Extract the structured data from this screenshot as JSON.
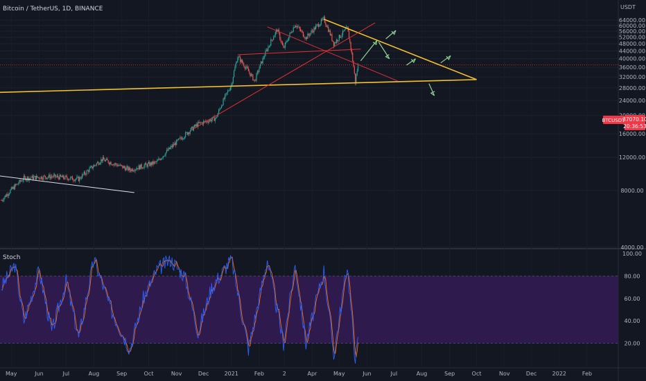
{
  "header": {
    "title": "Bitcoin / TetherUS, 1D, BINANCE"
  },
  "price_axis": {
    "currency": "USDT",
    "ticks": [
      "64000.00",
      "60000.00",
      "56000.00",
      "52000.00",
      "48000.00",
      "44000.00",
      "40000.00",
      "36000.00",
      "32000.00",
      "28000.00",
      "24000.00",
      "20000.00",
      "16000.00",
      "12000.00",
      "8000.00",
      "4000.00"
    ]
  },
  "price_badge": {
    "symbol": "BTCUSDT",
    "price": "37070.10",
    "countdown": "20:36:53",
    "color": "#f23645"
  },
  "stoch": {
    "label": "Stoch",
    "ticks": [
      "100.00",
      "80.00",
      "60.00",
      "40.00",
      "20.00"
    ],
    "band_color": "#2e1a4d",
    "k_color": "#2962ff",
    "d_color": "#ff6d00"
  },
  "time_axis": {
    "labels": [
      "May",
      "Jun",
      "Jul",
      "Aug",
      "Sep",
      "Oct",
      "Nov",
      "Dec",
      "2021",
      "Feb",
      "2",
      "Apr",
      "May",
      "Jun",
      "Jul",
      "Aug",
      "Sep",
      "Oct",
      "Nov",
      "Dec",
      "2022",
      "Feb"
    ]
  },
  "chart_data": {
    "type": "candlestick",
    "symbol": "BTCUSDT",
    "interval": "1D",
    "x_range": [
      "2020-05",
      "2022-02"
    ],
    "y_scale": "log",
    "ylim": [
      4000,
      68000
    ],
    "last_price": 37070.1,
    "price_path": [
      [
        "2020-04-20",
        7100
      ],
      [
        "2020-05-15",
        9300
      ],
      [
        "2020-06-15",
        9500
      ],
      [
        "2020-07-15",
        9200
      ],
      [
        "2020-08-10",
        11700
      ],
      [
        "2020-09-10",
        10300
      ],
      [
        "2020-10-10",
        11300
      ],
      [
        "2020-11-05",
        15000
      ],
      [
        "2020-11-25",
        18000
      ],
      [
        "2020-12-15",
        19400
      ],
      [
        "2021-01-01",
        29000
      ],
      [
        "2021-01-08",
        41000
      ],
      [
        "2021-01-27",
        30400
      ],
      [
        "2021-02-10",
        45000
      ],
      [
        "2021-02-21",
        57000
      ],
      [
        "2021-02-28",
        45000
      ],
      [
        "2021-03-13",
        61000
      ],
      [
        "2021-03-25",
        51500
      ],
      [
        "2021-04-14",
        64800
      ],
      [
        "2021-04-25",
        48000
      ],
      [
        "2021-05-10",
        58000
      ],
      [
        "2021-05-19",
        30000
      ],
      [
        "2021-05-22",
        37070
      ]
    ],
    "stoch_k_path": [
      [
        "2020-04-20",
        70
      ],
      [
        "2020-05-05",
        90
      ],
      [
        "2020-05-15",
        40
      ],
      [
        "2020-06-01",
        85
      ],
      [
        "2020-06-15",
        30
      ],
      [
        "2020-07-01",
        75
      ],
      [
        "2020-07-15",
        25
      ],
      [
        "2020-08-01",
        95
      ],
      [
        "2020-08-20",
        50
      ],
      [
        "2020-09-10",
        15
      ],
      [
        "2020-09-25",
        60
      ],
      [
        "2020-10-10",
        85
      ],
      [
        "2020-10-25",
        95
      ],
      [
        "2020-11-10",
        80
      ],
      [
        "2020-11-25",
        30
      ],
      [
        "2020-12-10",
        70
      ],
      [
        "2021-01-01",
        95
      ],
      [
        "2021-01-20",
        15
      ],
      [
        "2021-02-10",
        95
      ],
      [
        "2021-02-28",
        20
      ],
      [
        "2021-03-13",
        90
      ],
      [
        "2021-03-25",
        20
      ],
      [
        "2021-04-14",
        85
      ],
      [
        "2021-04-25",
        10
      ],
      [
        "2021-05-10",
        90
      ],
      [
        "2021-05-19",
        5
      ],
      [
        "2021-05-22",
        22
      ]
    ],
    "annotations": {
      "support_line": [
        [
          "2020-04-15",
          26500
        ],
        [
          "2021-10-01",
          31000
        ]
      ],
      "descending_trendline": [
        [
          "2021-04-14",
          64800
        ],
        [
          "2021-10-01",
          31000
        ]
      ],
      "early_trendline": [
        [
          "2020-04-15",
          9600
        ],
        [
          "2020-09-15",
          7800
        ]
      ]
    }
  }
}
